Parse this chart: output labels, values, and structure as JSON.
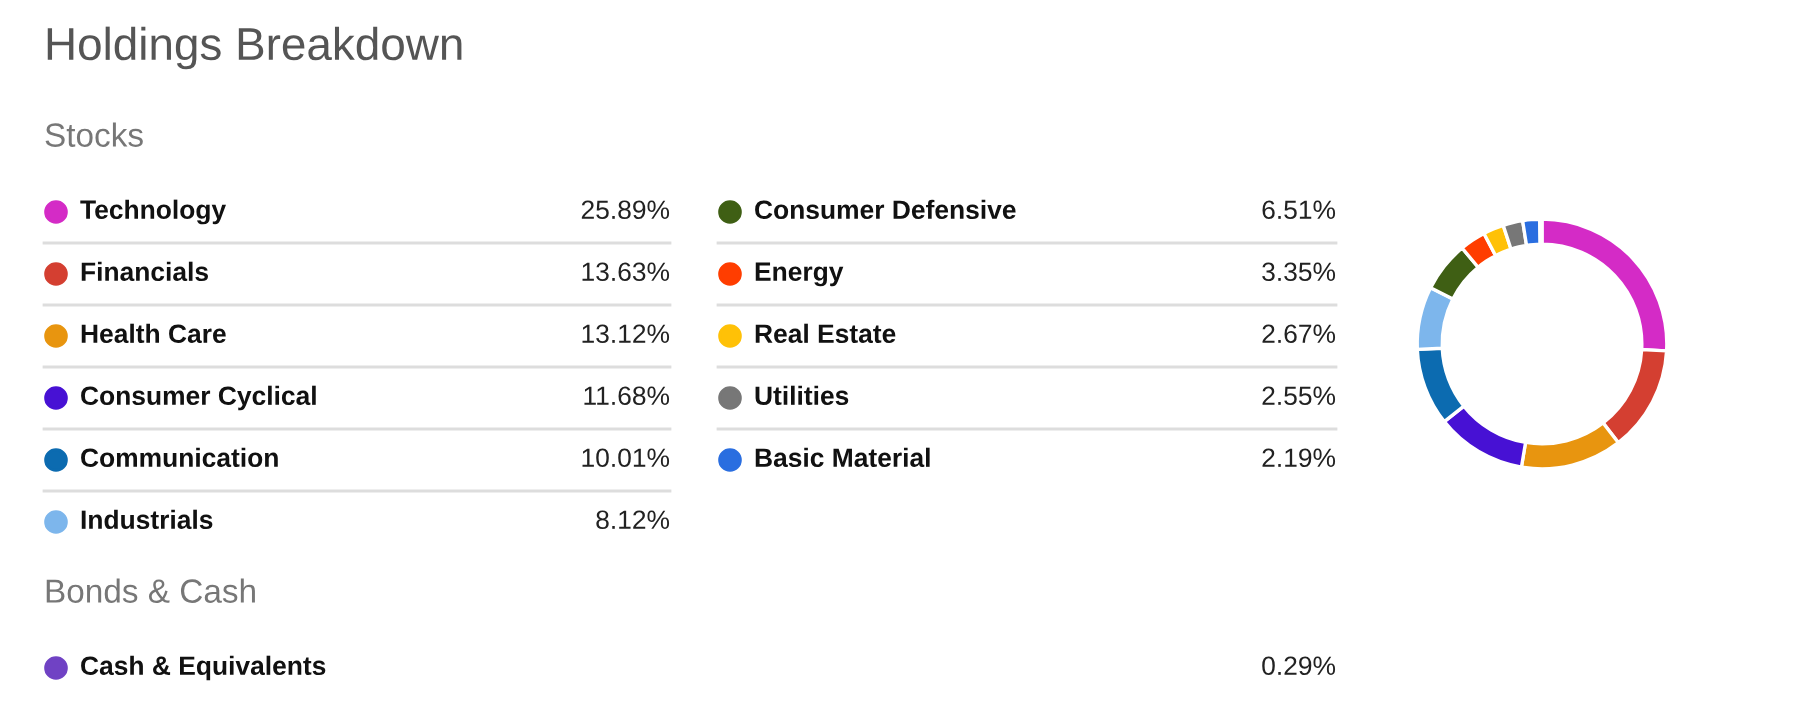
{
  "chart_data": {
    "type": "donut",
    "title": "Holdings Breakdown",
    "annotations": [
      "Stocks",
      "Bonds & Cash"
    ],
    "categories": [
      "Technology",
      "Financials",
      "Health Care",
      "Consumer Cyclical",
      "Communication",
      "Industrials",
      "Consumer Defensive",
      "Energy",
      "Real Estate",
      "Utilities",
      "Basic Material",
      "Cash & Equivalents"
    ],
    "values": [
      25.89,
      13.63,
      13.12,
      11.68,
      10.01,
      8.12,
      6.51,
      3.35,
      2.67,
      2.55,
      2.19,
      0.29
    ],
    "value_labels": [
      "25.89%",
      "13.63%",
      "13.12%",
      "11.68%",
      "10.01%",
      "8.12%",
      "6.51%",
      "3.35%",
      "2.67%",
      "2.55%",
      "2.19%",
      "0.29%"
    ],
    "colors": [
      "#d42bc6",
      "#d43f31",
      "#e8950f",
      "#4711d4",
      "#0c6bb0",
      "#7db6ec",
      "#3f5f14",
      "#ff3d00",
      "#ffc107",
      "#777777",
      "#2a6ee0",
      "#7042c4"
    ],
    "legend": "left"
  }
}
